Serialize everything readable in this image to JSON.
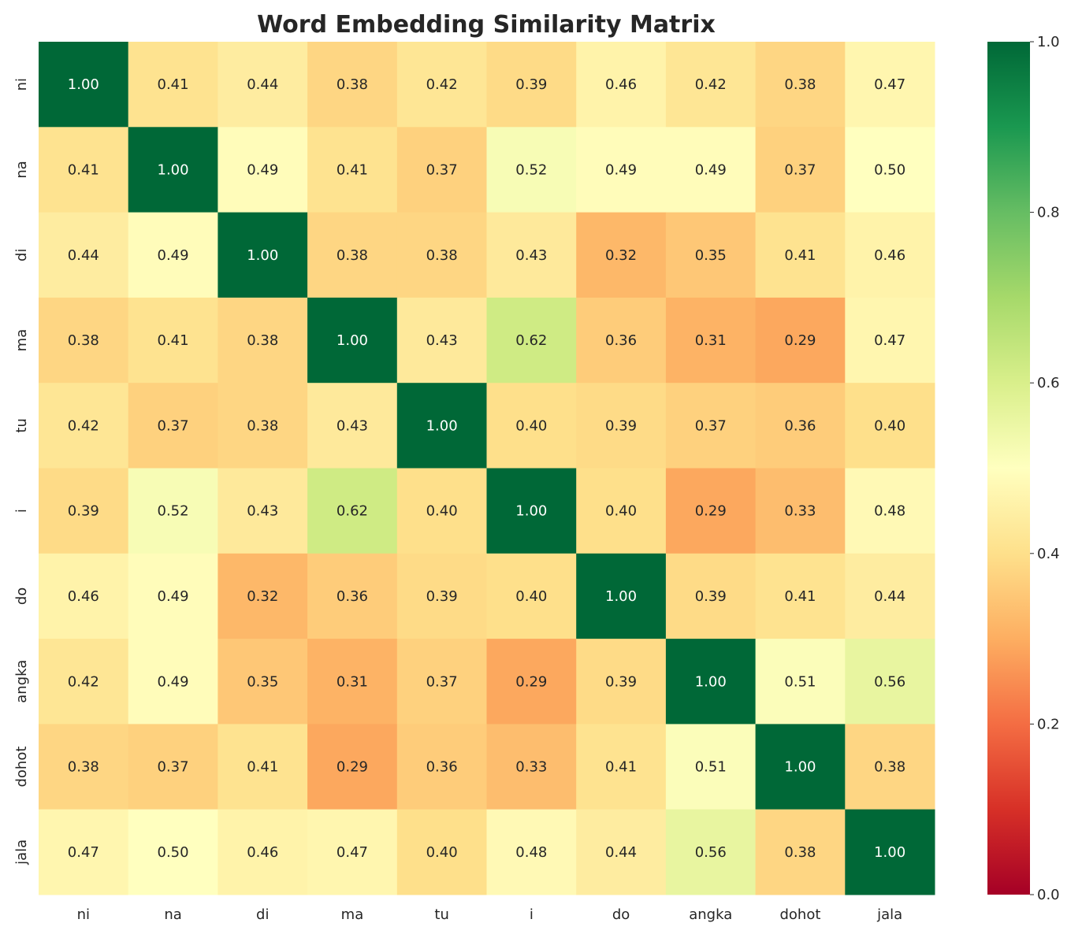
{
  "chart_data": {
    "type": "heatmap",
    "title": "Word Embedding Similarity Matrix",
    "x_labels": [
      "ni",
      "na",
      "di",
      "ma",
      "tu",
      "i",
      "do",
      "angka",
      "dohot",
      "jala"
    ],
    "y_labels": [
      "ni",
      "na",
      "di",
      "ma",
      "tu",
      "i",
      "do",
      "angka",
      "dohot",
      "jala"
    ],
    "values": [
      [
        1.0,
        0.41,
        0.44,
        0.38,
        0.42,
        0.39,
        0.46,
        0.42,
        0.38,
        0.47
      ],
      [
        0.41,
        1.0,
        0.49,
        0.41,
        0.37,
        0.52,
        0.49,
        0.49,
        0.37,
        0.5
      ],
      [
        0.44,
        0.49,
        1.0,
        0.38,
        0.38,
        0.43,
        0.32,
        0.35,
        0.41,
        0.46
      ],
      [
        0.38,
        0.41,
        0.38,
        1.0,
        0.43,
        0.62,
        0.36,
        0.31,
        0.29,
        0.47
      ],
      [
        0.42,
        0.37,
        0.38,
        0.43,
        1.0,
        0.4,
        0.39,
        0.37,
        0.36,
        0.4
      ],
      [
        0.39,
        0.52,
        0.43,
        0.62,
        0.4,
        1.0,
        0.4,
        0.29,
        0.33,
        0.48
      ],
      [
        0.46,
        0.49,
        0.32,
        0.36,
        0.39,
        0.4,
        1.0,
        0.39,
        0.41,
        0.44
      ],
      [
        0.42,
        0.49,
        0.35,
        0.31,
        0.37,
        0.29,
        0.39,
        1.0,
        0.51,
        0.56
      ],
      [
        0.38,
        0.37,
        0.41,
        0.29,
        0.36,
        0.33,
        0.41,
        0.51,
        1.0,
        0.38
      ],
      [
        0.47,
        0.5,
        0.46,
        0.47,
        0.4,
        0.48,
        0.44,
        0.56,
        0.38,
        1.0
      ]
    ],
    "colormap": [
      "#a50026",
      "#d73027",
      "#f46d43",
      "#fdae61",
      "#fee08b",
      "#ffffbf",
      "#d9ef8b",
      "#a6d96a",
      "#66bd63",
      "#1a9850",
      "#006837"
    ],
    "vmin": 0.0,
    "vmax": 1.0,
    "colorbar_ticks": [
      "0.0",
      "0.2",
      "0.4",
      "0.6",
      "0.8",
      "1.0"
    ],
    "annotation_format": "2 decimals"
  }
}
